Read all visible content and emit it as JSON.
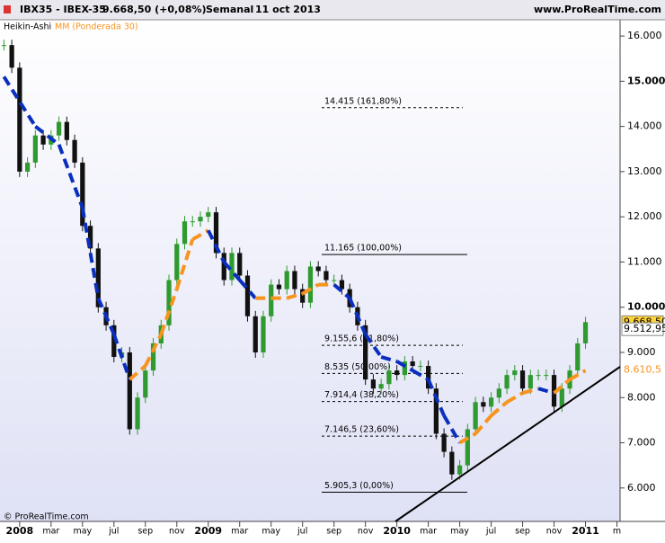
{
  "chart_data": {
    "type": "candlestick",
    "header": {
      "symbol": "IBX35 - IBEX-35",
      "quote": "9.668,50 (+0,08%)",
      "period": "Semanal",
      "date": "11 oct 2013",
      "site": "www.ProRealTime.com"
    },
    "footer": "© ProRealTime.com",
    "x": [
      -1,
      -0.5,
      0,
      0.5,
      1,
      1.5,
      2,
      2.5,
      3,
      3.5,
      4,
      4.5,
      5,
      5.5,
      6,
      6.5,
      7,
      7.5,
      8,
      8.5,
      9,
      9.5,
      10,
      10.5,
      11,
      11.5,
      12,
      12.5,
      13,
      13.5,
      14,
      14.5,
      15,
      15.5,
      16,
      16.5,
      17,
      17.5,
      18,
      18.5,
      19,
      19.5,
      20,
      20.5,
      21,
      21.5,
      22,
      22.5,
      23,
      23.5,
      24,
      24.5,
      25,
      25.5,
      26,
      26.5,
      27,
      27.5,
      28,
      28.5,
      29,
      29.5,
      30,
      30.5,
      31,
      31.5,
      32,
      32.5,
      33,
      33.5,
      34,
      34.5,
      35,
      35.5,
      36
    ],
    "series": [
      {
        "name": "Heikin-Ashi",
        "up_color": "#2f9a2f",
        "down_color": "#111111",
        "values": [
          15.8,
          15.3,
          13.0,
          13.2,
          13.8,
          13.6,
          13.8,
          14.1,
          13.7,
          13.2,
          11.8,
          11.3,
          10.0,
          9.6,
          8.9,
          9.0,
          7.3,
          8.0,
          8.6,
          9.2,
          9.6,
          10.6,
          11.4,
          11.9,
          11.9,
          12.0,
          12.1,
          11.2,
          10.6,
          11.2,
          10.7,
          9.8,
          9.0,
          9.8,
          10.5,
          10.4,
          10.8,
          10.4,
          10.1,
          10.9,
          10.8,
          10.6,
          10.6,
          10.4,
          10.0,
          9.6,
          8.4,
          8.2,
          8.3,
          8.6,
          8.5,
          8.8,
          8.7,
          8.7,
          8.2,
          7.2,
          6.8,
          6.3,
          6.5,
          7.3,
          7.9,
          7.8,
          8.0,
          8.2,
          8.5,
          8.6,
          8.2,
          8.5,
          8.5,
          8.5,
          7.8,
          8.2,
          8.6,
          9.2,
          9.67
        ]
      },
      {
        "name": "MM (Ponderada 30)",
        "color": "#f7941d",
        "down_color": "#0a2fbf",
        "x": [
          -1,
          1,
          2.5,
          4,
          5,
          6,
          7,
          8,
          9,
          10,
          11,
          12,
          13,
          14,
          15,
          16,
          17,
          18,
          19,
          20,
          21,
          22,
          23,
          24,
          25,
          26,
          27,
          28,
          29,
          30,
          31,
          32,
          33,
          34,
          35,
          36
        ],
        "values": [
          15.1,
          14.0,
          13.6,
          12.2,
          10.2,
          9.4,
          8.4,
          8.7,
          9.4,
          10.4,
          11.5,
          11.7,
          11.0,
          10.6,
          10.2,
          10.2,
          10.2,
          10.3,
          10.5,
          10.5,
          10.2,
          9.4,
          8.9,
          8.8,
          8.6,
          8.4,
          7.6,
          7.0,
          7.2,
          7.6,
          7.9,
          8.1,
          8.2,
          8.1,
          8.4,
          8.6
        ]
      }
    ],
    "fib_levels": [
      {
        "value": 14.415,
        "label": "14.415 (161,80%)"
      },
      {
        "value": 11.165,
        "label": "11.165 (100,00%)"
      },
      {
        "value": 9.1556,
        "label": "9.155,6 (61,80%)"
      },
      {
        "value": 8.535,
        "label": "8.535 (50,00%)"
      },
      {
        "value": 7.9144,
        "label": "7.914,4 (38,20%)"
      },
      {
        "value": 7.1465,
        "label": "7.146,5 (23,60%)"
      },
      {
        "value": 5.9053,
        "label": "5.905,3 (0,00%)"
      }
    ],
    "price_labels": [
      {
        "value": 9.6685,
        "label": "9.668,50",
        "color": "#ffd43b"
      },
      {
        "value": 9.51295,
        "label": "9.512,95",
        "color": "#ffffff"
      },
      {
        "value": 8.6105,
        "label": "8.610,5",
        "color": "#f7941d"
      }
    ],
    "ylim": [
      5.26,
      16.36
    ],
    "yticks": [
      {
        "value": 6,
        "label": "6.000"
      },
      {
        "value": 7,
        "label": "7.000"
      },
      {
        "value": 8,
        "label": "8.000"
      },
      {
        "value": 9,
        "label": "9.000"
      },
      {
        "value": 10,
        "label": "10.000"
      },
      {
        "value": 11,
        "label": "11.000"
      },
      {
        "value": 12,
        "label": "12.000"
      },
      {
        "value": 13,
        "label": "13.000"
      },
      {
        "value": 14,
        "label": "14.000"
      },
      {
        "value": 15,
        "label": "15.000"
      },
      {
        "value": 16,
        "label": "16.000"
      }
    ],
    "xlim": [
      -1.25,
      38.2
    ],
    "xticks": [
      {
        "value": 0,
        "label": "2008"
      },
      {
        "value": 2,
        "label": "mar"
      },
      {
        "value": 4,
        "label": "may"
      },
      {
        "value": 6,
        "label": "jul"
      },
      {
        "value": 8,
        "label": "sep"
      },
      {
        "value": 10,
        "label": "nov"
      },
      {
        "value": 12,
        "label": "2009"
      },
      {
        "value": 14,
        "label": "mar"
      },
      {
        "value": 16,
        "label": "may"
      },
      {
        "value": 18,
        "label": "jul"
      },
      {
        "value": 20,
        "label": "sep"
      },
      {
        "value": 22,
        "label": "nov"
      },
      {
        "value": 24,
        "label": "2010"
      },
      {
        "value": 26,
        "label": "mar"
      },
      {
        "value": 28,
        "label": "may"
      },
      {
        "value": 30,
        "label": "jul"
      },
      {
        "value": 32,
        "label": "sep"
      },
      {
        "value": 34,
        "label": "nov"
      },
      {
        "value": 36,
        "label": "2011"
      },
      {
        "value": 38,
        "label": "m"
      }
    ]
  }
}
